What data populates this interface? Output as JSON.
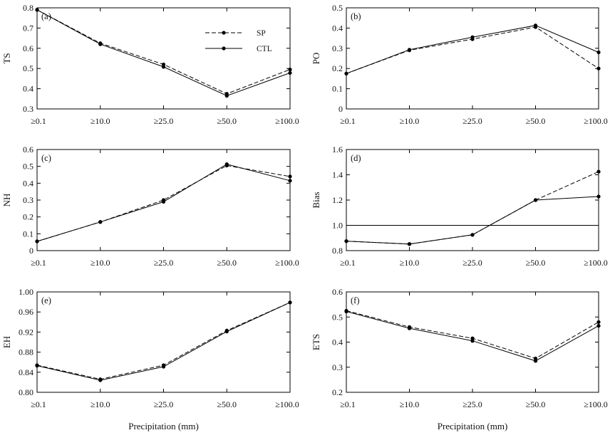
{
  "chart_data": [
    {
      "type": "line",
      "panel": "(a)",
      "ylabel": "TS",
      "xlabel": "",
      "categories": [
        "≥0.1",
        "≥10.0",
        "≥25.0",
        "≥50.0",
        "≥100.0"
      ],
      "ylim": [
        0.3,
        0.8
      ],
      "yticks": [
        "0.3",
        "0.4",
        "0.5",
        "0.6",
        "0.7",
        "0.8"
      ],
      "legend": {
        "placement": "top-center",
        "entries": [
          "SP",
          "CTL"
        ]
      },
      "series": [
        {
          "name": "SP",
          "style": "dashed",
          "values": [
            0.79,
            0.625,
            0.52,
            0.375,
            0.495
          ]
        },
        {
          "name": "CTL",
          "style": "solid",
          "values": [
            0.79,
            0.62,
            0.508,
            0.365,
            0.478
          ]
        }
      ]
    },
    {
      "type": "line",
      "panel": "(b)",
      "ylabel": "PO",
      "xlabel": "",
      "categories": [
        "≥0.1",
        "≥10.0",
        "≥25.0",
        "≥50.0",
        "≥100.0"
      ],
      "ylim": [
        0,
        0.5
      ],
      "yticks": [
        "0",
        "0.1",
        "0.2",
        "0.3",
        "0.4",
        "0.5"
      ],
      "series": [
        {
          "name": "SP",
          "style": "dashed",
          "values": [
            0.175,
            0.29,
            0.345,
            0.405,
            0.2
          ]
        },
        {
          "name": "CTL",
          "style": "solid",
          "values": [
            0.175,
            0.293,
            0.355,
            0.413,
            0.28
          ]
        }
      ]
    },
    {
      "type": "line",
      "panel": "(c)",
      "ylabel": "NH",
      "xlabel": "",
      "categories": [
        "≥0.1",
        "≥10.0",
        "≥25.0",
        "≥50.0",
        "≥100.0"
      ],
      "ylim": [
        0,
        0.6
      ],
      "yticks": [
        "0",
        "0.1",
        "0.2",
        "0.3",
        "0.4",
        "0.5",
        "0.6"
      ],
      "series": [
        {
          "name": "SP",
          "style": "dashed",
          "values": [
            0.055,
            0.17,
            0.3,
            0.505,
            0.44
          ]
        },
        {
          "name": "CTL",
          "style": "solid",
          "values": [
            0.055,
            0.17,
            0.29,
            0.513,
            0.415
          ]
        }
      ]
    },
    {
      "type": "line",
      "panel": "(d)",
      "ylabel": "Bias",
      "xlabel": "",
      "categories": [
        "≥0.1",
        "≥10.0",
        "≥25.0",
        "≥50.0",
        "≥100.0"
      ],
      "ylim": [
        0.8,
        1.6
      ],
      "yticks": [
        "0.8",
        "1.0",
        "1.2",
        "1.4",
        "1.6"
      ],
      "reference_line": 1.0,
      "series": [
        {
          "name": "SP",
          "style": "dashed",
          "values": [
            0.875,
            0.852,
            0.925,
            1.2,
            1.425
          ]
        },
        {
          "name": "CTL",
          "style": "solid",
          "values": [
            0.875,
            0.852,
            0.925,
            1.2,
            1.228
          ]
        }
      ]
    },
    {
      "type": "line",
      "panel": "(e)",
      "ylabel": "EH",
      "xlabel": "Precipitation (mm)",
      "categories": [
        "≥0.1",
        "≥10.0",
        "≥25.0",
        "≥50.0",
        "≥100.0"
      ],
      "ylim": [
        0.8,
        1.0
      ],
      "yticks": [
        "0.80",
        "0.84",
        "0.88",
        "0.92",
        "0.96",
        "1.00"
      ],
      "series": [
        {
          "name": "SP",
          "style": "dashed",
          "values": [
            0.854,
            0.826,
            0.854,
            0.923,
            0.979
          ]
        },
        {
          "name": "CTL",
          "style": "solid",
          "values": [
            0.853,
            0.824,
            0.851,
            0.921,
            0.979
          ]
        }
      ]
    },
    {
      "type": "line",
      "panel": "(f)",
      "ylabel": "ETS",
      "xlabel": "Precipitation (mm)",
      "categories": [
        "≥0.1",
        "≥10.0",
        "≥25.0",
        "≥50.0",
        "≥100.0"
      ],
      "ylim": [
        0.2,
        0.6
      ],
      "yticks": [
        "0.2",
        "0.3",
        "0.4",
        "0.5",
        "0.6"
      ],
      "series": [
        {
          "name": "SP",
          "style": "dashed",
          "values": [
            0.525,
            0.46,
            0.415,
            0.335,
            0.48
          ]
        },
        {
          "name": "CTL",
          "style": "solid",
          "values": [
            0.522,
            0.455,
            0.405,
            0.325,
            0.465
          ]
        }
      ]
    }
  ]
}
